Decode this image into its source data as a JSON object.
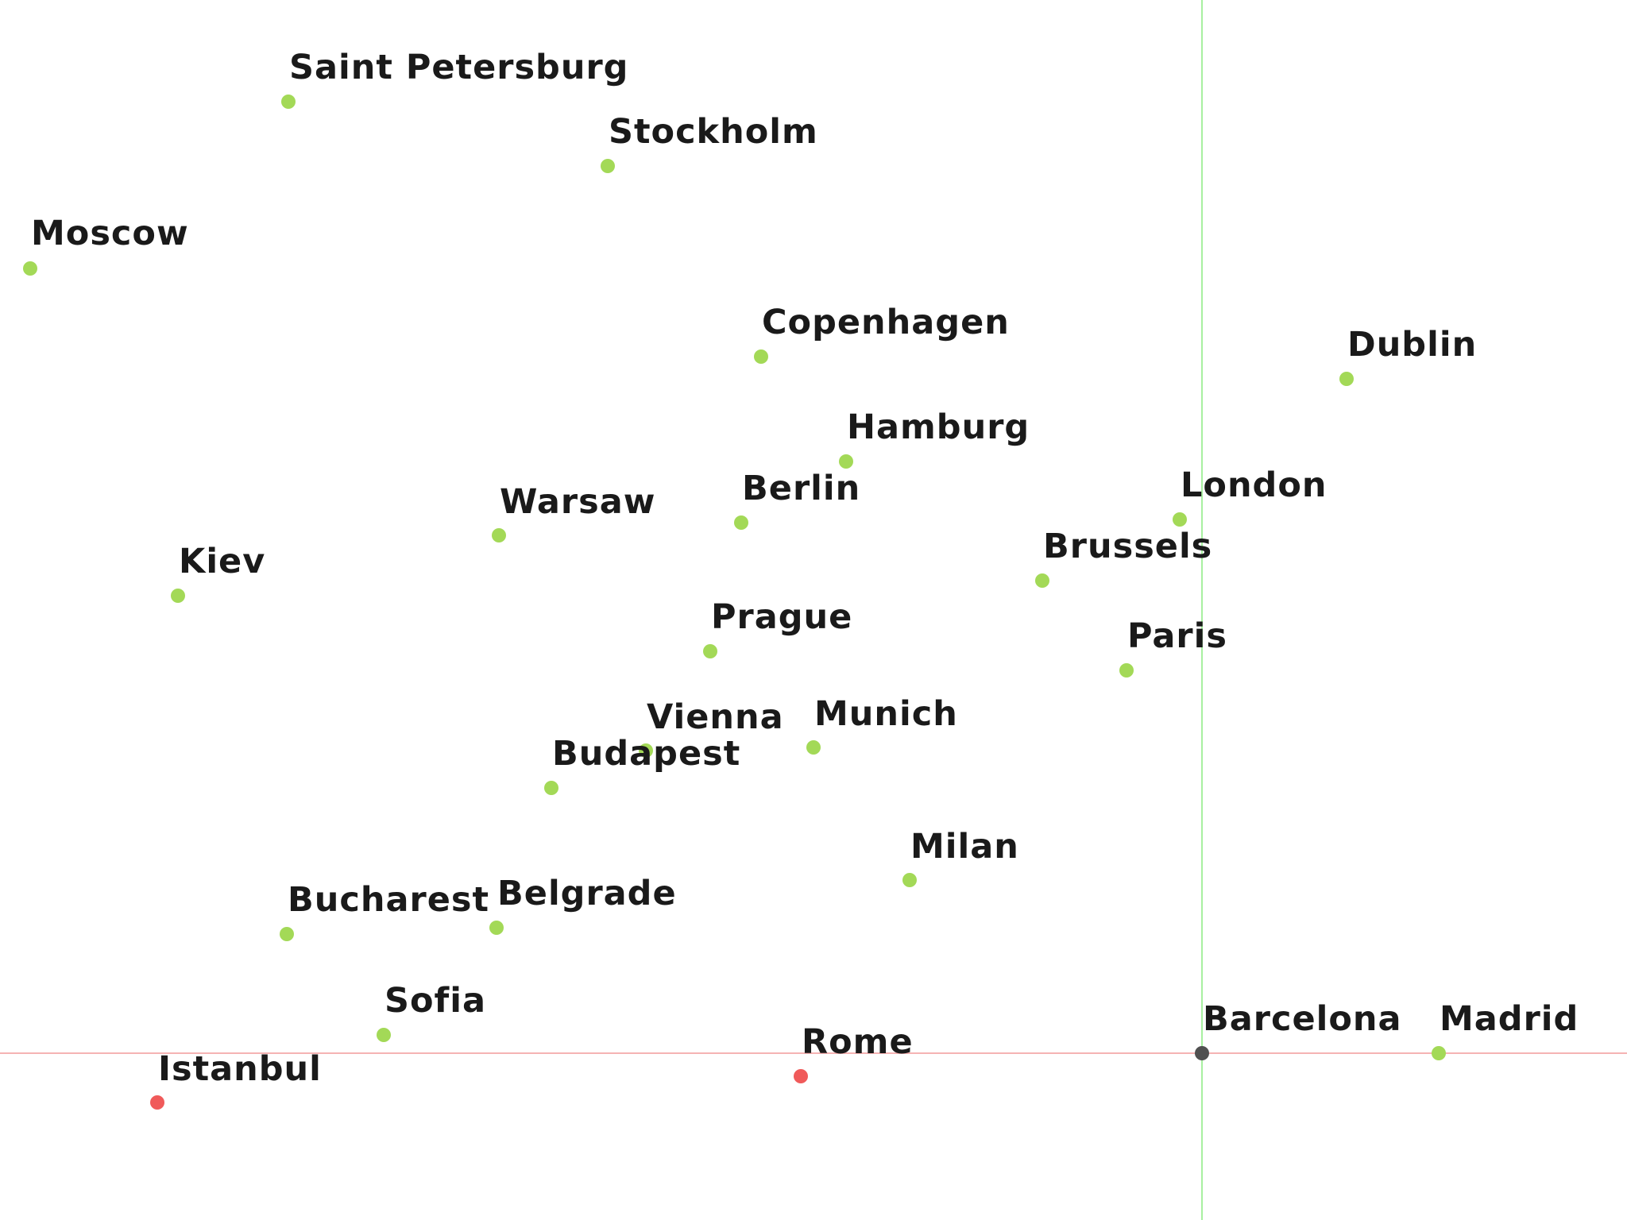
{
  "colors": {
    "background": "#ffffff",
    "normal_point": "#a3d957",
    "highlight_point": "#f05a5a",
    "origin_point": "#505050",
    "label": "#1a1a1a",
    "vertical_axis": "#a8f0a0",
    "horizontal_axis": "#f5b3b3"
  },
  "origin": "Barcelona",
  "cities": [
    {
      "name": "Saint Petersburg",
      "status": "normal"
    },
    {
      "name": "Stockholm",
      "status": "normal"
    },
    {
      "name": "Moscow",
      "status": "normal"
    },
    {
      "name": "Copenhagen",
      "status": "normal"
    },
    {
      "name": "Dublin",
      "status": "normal"
    },
    {
      "name": "Hamburg",
      "status": "normal"
    },
    {
      "name": "Warsaw",
      "status": "normal"
    },
    {
      "name": "Berlin",
      "status": "normal"
    },
    {
      "name": "London",
      "status": "normal"
    },
    {
      "name": "Brussels",
      "status": "normal"
    },
    {
      "name": "Kiev",
      "status": "normal"
    },
    {
      "name": "Prague",
      "status": "normal"
    },
    {
      "name": "Paris",
      "status": "normal"
    },
    {
      "name": "Vienna",
      "status": "normal"
    },
    {
      "name": "Munich",
      "status": "normal"
    },
    {
      "name": "Budapest",
      "status": "normal"
    },
    {
      "name": "Milan",
      "status": "normal"
    },
    {
      "name": "Bucharest",
      "status": "normal"
    },
    {
      "name": "Belgrade",
      "status": "normal"
    },
    {
      "name": "Sofia",
      "status": "normal"
    },
    {
      "name": "Barcelona",
      "status": "origin"
    },
    {
      "name": "Madrid",
      "status": "normal"
    },
    {
      "name": "Rome",
      "status": "highlight"
    },
    {
      "name": "Istanbul",
      "status": "highlight"
    }
  ]
}
